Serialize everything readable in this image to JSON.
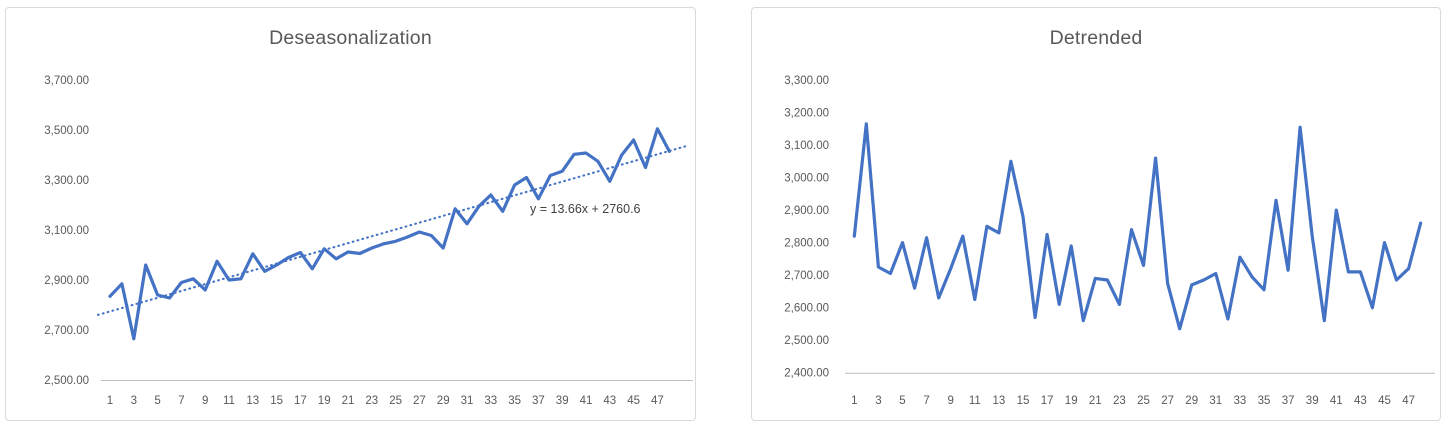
{
  "page": {
    "background": "#FFFFFF"
  },
  "styles": {
    "series_color": "#4472C4",
    "tick_label_color": "#595959",
    "title_color": "#595959",
    "axis_line_color": "#BFBFBF",
    "panel_border_color": "#D9D9D9",
    "equation_text_color": "#404040"
  },
  "chart_data": [
    {
      "type": "line",
      "title": "Deseasonalization",
      "x_range": [
        1,
        48
      ],
      "x_tick_labels": [
        "1",
        "3",
        "5",
        "7",
        "9",
        "11",
        "13",
        "15",
        "17",
        "19",
        "21",
        "23",
        "25",
        "27",
        "29",
        "31",
        "33",
        "35",
        "37",
        "39",
        "41",
        "43",
        "45",
        "47"
      ],
      "y_tick_labels": [
        "3,700.00",
        "3,500.00",
        "3,300.00",
        "3,100.00",
        "2,900.00",
        "2,700.00",
        "2,500.00"
      ],
      "ylim": [
        2500,
        3700
      ],
      "y_tick_step": 200,
      "grid": false,
      "legend": false,
      "line_color": "#4472C4",
      "values": [
        2835,
        2885,
        2665,
        2960,
        2840,
        2828,
        2890,
        2905,
        2860,
        2975,
        2900,
        2905,
        3005,
        2935,
        2960,
        2990,
        3010,
        2945,
        3025,
        2985,
        3012,
        3006,
        3028,
        3045,
        3055,
        3072,
        3092,
        3078,
        3028,
        3185,
        3125,
        3195,
        3240,
        3175,
        3280,
        3310,
        3225,
        3318,
        3335,
        3403,
        3408,
        3375,
        3295,
        3400,
        3460,
        3350,
        3505,
        3415
      ],
      "trendline": {
        "type": "linear",
        "style": "dotted",
        "slope": 13.66,
        "intercept": 2760.6,
        "label": "y = 13.66x + 2760.6",
        "color": "#4472C4"
      }
    },
    {
      "type": "line",
      "title": "Detrended",
      "x_range": [
        1,
        48
      ],
      "x_tick_labels": [
        "1",
        "3",
        "5",
        "7",
        "9",
        "11",
        "13",
        "15",
        "17",
        "19",
        "21",
        "23",
        "25",
        "27",
        "29",
        "31",
        "33",
        "35",
        "37",
        "39",
        "41",
        "43",
        "45",
        "47"
      ],
      "y_tick_labels": [
        "3,300.00",
        "3,200.00",
        "3,100.00",
        "3,000.00",
        "2,900.00",
        "2,800.00",
        "2,700.00",
        "2,600.00",
        "2,500.00",
        "2,400.00"
      ],
      "ylim": [
        2400,
        3300
      ],
      "y_tick_step": 100,
      "grid": false,
      "legend": false,
      "line_color": "#4472C4",
      "values": [
        2820,
        3165,
        2725,
        2705,
        2800,
        2660,
        2815,
        2630,
        2720,
        2820,
        2625,
        2850,
        2830,
        3050,
        2880,
        2570,
        2825,
        2610,
        2790,
        2560,
        2690,
        2685,
        2610,
        2840,
        2730,
        3060,
        2675,
        2535,
        2670,
        2685,
        2705,
        2565,
        2755,
        2695,
        2655,
        2930,
        2715,
        3155,
        2820,
        2560,
        2900,
        2710,
        2710,
        2600,
        2800,
        2685,
        2720,
        2860
      ]
    }
  ]
}
